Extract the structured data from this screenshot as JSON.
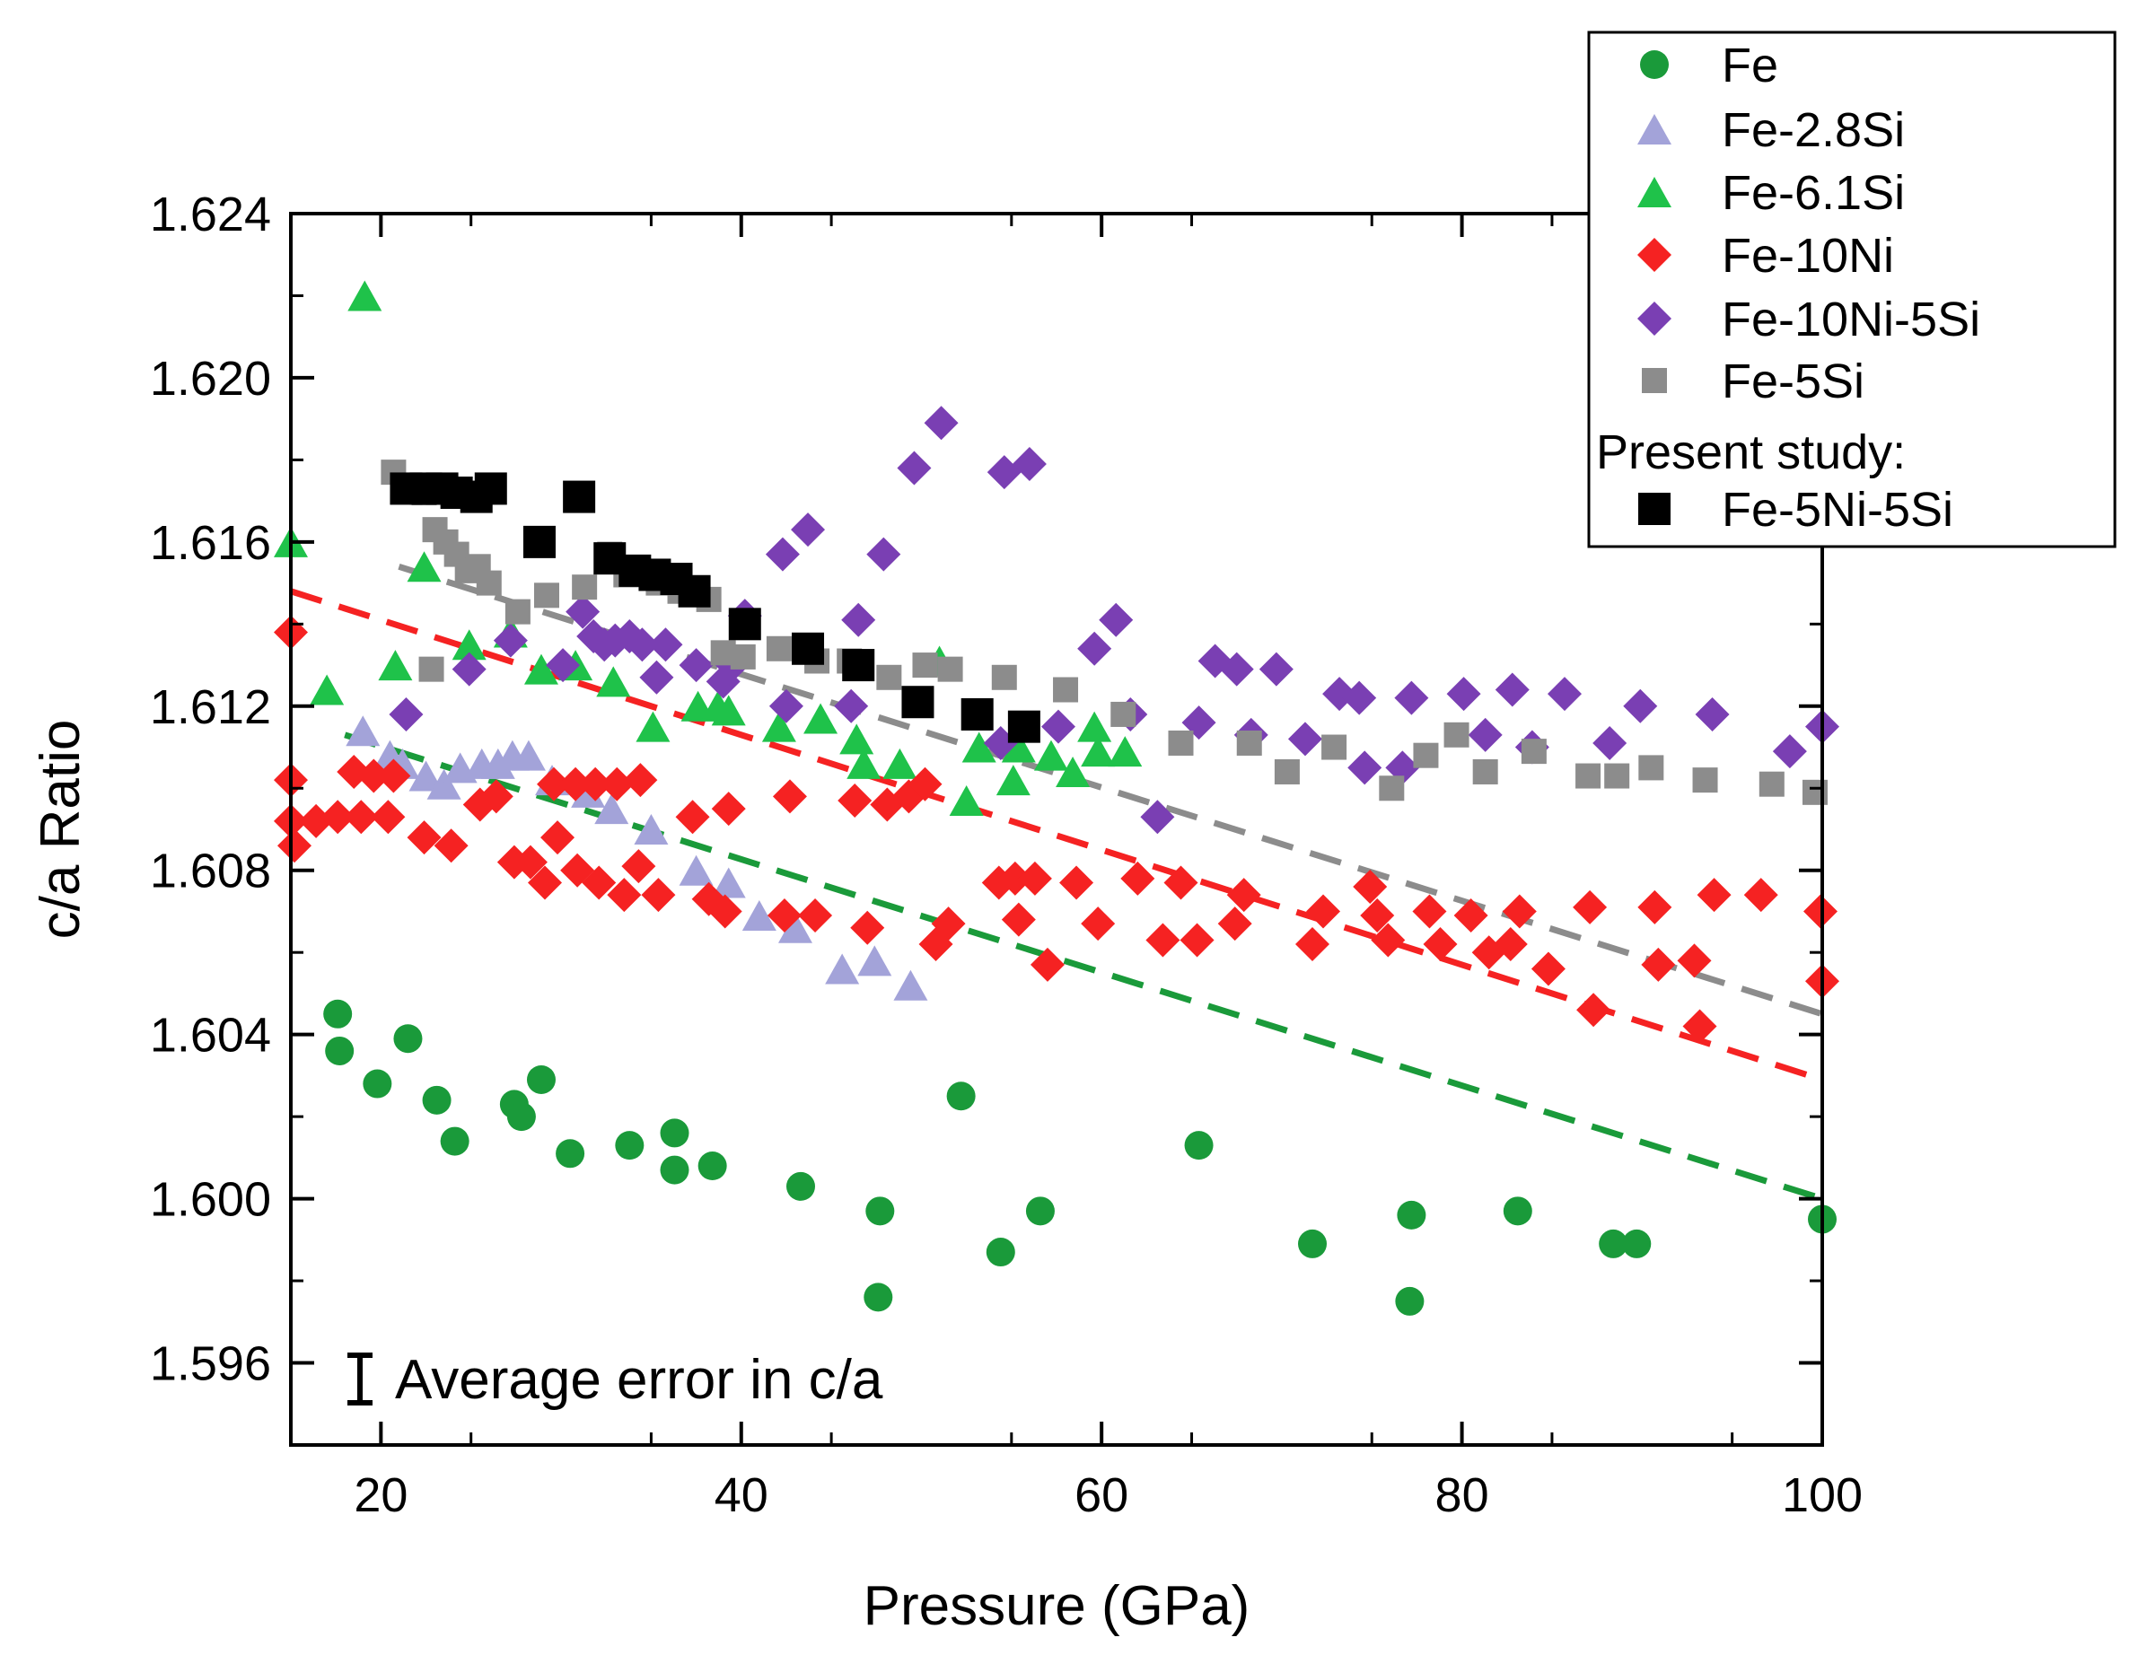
{
  "chart_data": {
    "type": "scatter",
    "title": "",
    "xlabel": "Pressure (GPa)",
    "ylabel": "c/a Ratio",
    "xlim": [
      15,
      100
    ],
    "ylim": [
      1.594,
      1.624
    ],
    "xticks": [
      20,
      40,
      60,
      80,
      100
    ],
    "xtick_labels": [
      "20",
      "40",
      "60",
      "80",
      "100"
    ],
    "yticks": [
      1.596,
      1.6,
      1.604,
      1.608,
      1.612,
      1.616,
      1.62,
      1.624
    ],
    "ytick_labels": [
      "1.596",
      "1.600",
      "1.604",
      "1.608",
      "1.612",
      "1.616",
      "1.620",
      "1.624"
    ],
    "grid": false,
    "legend_position": "top-right",
    "annotation": "Average error in c/a",
    "legend_subheading": "Present study:",
    "series": [
      {
        "name": "Fe",
        "marker": "circle",
        "color": "#1a9a3a",
        "points": [
          [
            17.6,
            1.6045
          ],
          [
            17.7,
            1.6036
          ],
          [
            19.8,
            1.6028
          ],
          [
            21.5,
            1.6039
          ],
          [
            23.1,
            1.6024
          ],
          [
            24.1,
            1.6014
          ],
          [
            27.4,
            1.6023
          ],
          [
            27.8,
            1.602
          ],
          [
            28.9,
            1.6029
          ],
          [
            30.5,
            1.6011
          ],
          [
            33.8,
            1.6013
          ],
          [
            36.3,
            1.6016
          ],
          [
            36.3,
            1.6007
          ],
          [
            38.4,
            1.6008
          ],
          [
            43.3,
            1.6003
          ],
          [
            47.7,
            1.5997
          ],
          [
            47.6,
            1.5976
          ],
          [
            52.2,
            1.6025
          ],
          [
            54.4,
            1.5987
          ],
          [
            56.6,
            1.5997
          ],
          [
            65.4,
            1.6013
          ],
          [
            71.7,
            1.5989
          ],
          [
            77.2,
            1.5996
          ],
          [
            77.1,
            1.5975
          ],
          [
            83.1,
            1.5997
          ],
          [
            88.4,
            1.5989
          ],
          [
            89.7,
            1.5989
          ],
          [
            100.0,
            1.5995
          ]
        ]
      },
      {
        "name": "Fe-2.8Si",
        "marker": "triangle",
        "color": "#a3a3d9",
        "points": [
          [
            19.0,
            1.6114
          ],
          [
            20.5,
            1.6108
          ],
          [
            21.2,
            1.6106
          ],
          [
            22.5,
            1.6103
          ],
          [
            23.5,
            1.6101
          ],
          [
            24.4,
            1.6105
          ],
          [
            25.6,
            1.6106
          ],
          [
            26.5,
            1.6106
          ],
          [
            27.3,
            1.6108
          ],
          [
            28.2,
            1.6108
          ],
          [
            29.5,
            1.6102
          ],
          [
            31.5,
            1.6099
          ],
          [
            32.8,
            1.6095
          ],
          [
            35.0,
            1.609
          ],
          [
            37.5,
            1.608
          ],
          [
            39.3,
            1.6077
          ],
          [
            41.0,
            1.6069
          ],
          [
            43.0,
            1.6066
          ],
          [
            45.6,
            1.6056
          ],
          [
            47.4,
            1.6058
          ],
          [
            49.4,
            1.6052
          ]
        ]
      },
      {
        "name": "Fe-6.1Si",
        "marker": "triangle",
        "color": "#1fc24a",
        "points": [
          [
            15.0,
            1.616
          ],
          [
            17.0,
            1.6124
          ],
          [
            19.1,
            1.622
          ],
          [
            20.8,
            1.613
          ],
          [
            22.4,
            1.6154
          ],
          [
            24.9,
            1.6135
          ],
          [
            27.2,
            1.6138
          ],
          [
            28.9,
            1.6129
          ],
          [
            30.8,
            1.613
          ],
          [
            32.9,
            1.6126
          ],
          [
            35.1,
            1.6115
          ],
          [
            37.6,
            1.612
          ],
          [
            38.7,
            1.612
          ],
          [
            39.3,
            1.6119
          ],
          [
            42.1,
            1.6115
          ],
          [
            44.4,
            1.6117
          ],
          [
            46.4,
            1.6112
          ],
          [
            46.8,
            1.6106
          ],
          [
            48.8,
            1.6106
          ],
          [
            51.0,
            1.6131
          ],
          [
            52.5,
            1.6097
          ],
          [
            53.2,
            1.611
          ],
          [
            55.1,
            1.6102
          ],
          [
            55.4,
            1.611
          ],
          [
            57.2,
            1.6108
          ],
          [
            58.4,
            1.6104
          ],
          [
            59.6,
            1.6115
          ],
          [
            59.8,
            1.6109
          ],
          [
            61.3,
            1.6109
          ]
        ]
      },
      {
        "name": "Fe-10Ni",
        "marker": "diamond",
        "color": "#f52222",
        "points": [
          [
            15.0,
            1.6138
          ],
          [
            15.0,
            1.6102
          ],
          [
            15.0,
            1.6092
          ],
          [
            15.2,
            1.6086
          ],
          [
            16.4,
            1.6092
          ],
          [
            17.6,
            1.6093
          ],
          [
            18.9,
            1.6093
          ],
          [
            20.4,
            1.6093
          ],
          [
            18.5,
            1.6104
          ],
          [
            19.6,
            1.6103
          ],
          [
            20.7,
            1.6103
          ],
          [
            22.4,
            1.6088
          ],
          [
            23.9,
            1.6086
          ],
          [
            25.5,
            1.6096
          ],
          [
            26.4,
            1.6098
          ],
          [
            27.4,
            1.6082
          ],
          [
            28.3,
            1.6082
          ],
          [
            29.1,
            1.6077
          ],
          [
            29.8,
            1.6088
          ],
          [
            30.9,
            1.608
          ],
          [
            32.1,
            1.6077
          ],
          [
            33.5,
            1.6074
          ],
          [
            34.3,
            1.6081
          ],
          [
            35.4,
            1.6074
          ],
          [
            29.6,
            1.6101
          ],
          [
            30.8,
            1.6101
          ],
          [
            31.9,
            1.6101
          ],
          [
            33.1,
            1.6101
          ],
          [
            34.4,
            1.6102
          ],
          [
            37.3,
            1.6093
          ],
          [
            38.2,
            1.6073
          ],
          [
            39.1,
            1.607
          ],
          [
            39.3,
            1.6095
          ],
          [
            42.4,
            1.6069
          ],
          [
            42.7,
            1.6098
          ],
          [
            44.1,
            1.6069
          ],
          [
            46.3,
            1.6097
          ],
          [
            47.0,
            1.6066
          ],
          [
            48.1,
            1.6096
          ],
          [
            49.3,
            1.6098
          ],
          [
            50.2,
            1.6101
          ],
          [
            50.8,
            1.6062
          ],
          [
            51.5,
            1.6067
          ],
          [
            54.3,
            1.6077
          ],
          [
            55.2,
            1.6078
          ],
          [
            55.4,
            1.6068
          ],
          [
            56.3,
            1.6078
          ],
          [
            57.0,
            1.6057
          ],
          [
            58.6,
            1.6077
          ],
          [
            59.8,
            1.6067
          ],
          [
            62.0,
            1.6078
          ],
          [
            63.4,
            1.6063
          ],
          [
            64.4,
            1.6077
          ],
          [
            65.3,
            1.6063
          ],
          [
            67.4,
            1.6067
          ],
          [
            67.9,
            1.6074
          ],
          [
            71.7,
            1.6062
          ],
          [
            72.3,
            1.607
          ],
          [
            74.9,
            1.6076
          ],
          [
            75.3,
            1.6069
          ],
          [
            75.9,
            1.6063
          ],
          [
            78.2,
            1.607
          ],
          [
            78.8,
            1.6062
          ],
          [
            80.5,
            1.6069
          ],
          [
            81.5,
            1.606
          ],
          [
            82.7,
            1.6062
          ],
          [
            83.2,
            1.607
          ],
          [
            84.8,
            1.6056
          ],
          [
            87.1,
            1.6071
          ],
          [
            87.3,
            1.6046
          ],
          [
            90.7,
            1.6071
          ],
          [
            90.9,
            1.6057
          ],
          [
            92.9,
            1.6058
          ],
          [
            93.2,
            1.6042
          ],
          [
            94.0,
            1.6074
          ],
          [
            96.6,
            1.6074
          ],
          [
            99.9,
            1.607
          ],
          [
            100.0,
            1.6053
          ]
        ]
      },
      {
        "name": "Fe-10Ni-5Si",
        "marker": "diamond",
        "color": "#7a3fb3",
        "points": [
          [
            21.4,
            1.6118
          ],
          [
            24.9,
            1.6129
          ],
          [
            27.2,
            1.6136
          ],
          [
            30.1,
            1.613
          ],
          [
            31.2,
            1.6143
          ],
          [
            31.8,
            1.6137
          ],
          [
            32.4,
            1.6135
          ],
          [
            33.0,
            1.6136
          ],
          [
            33.8,
            1.6137
          ],
          [
            34.5,
            1.6135
          ],
          [
            35.3,
            1.6127
          ],
          [
            35.8,
            1.6135
          ],
          [
            37.5,
            1.613
          ],
          [
            39.0,
            1.6126
          ],
          [
            39.5,
            1.613
          ],
          [
            40.2,
            1.6142
          ],
          [
            42.3,
            1.6157
          ],
          [
            42.5,
            1.612
          ],
          [
            43.7,
            1.6163
          ],
          [
            46.1,
            1.612
          ],
          [
            46.5,
            1.6141
          ],
          [
            47.9,
            1.6157
          ],
          [
            49.6,
            1.6178
          ],
          [
            51.1,
            1.6189
          ],
          [
            54.4,
            1.6111
          ],
          [
            54.6,
            1.6177
          ],
          [
            56.0,
            1.6179
          ],
          [
            57.6,
            1.6115
          ],
          [
            59.6,
            1.6134
          ],
          [
            60.8,
            1.6141
          ],
          [
            61.6,
            1.6118
          ],
          [
            63.1,
            1.6093
          ],
          [
            65.4,
            1.6116
          ],
          [
            66.3,
            1.6131
          ],
          [
            67.5,
            1.6129
          ],
          [
            68.3,
            1.6113
          ],
          [
            69.7,
            1.6129
          ],
          [
            71.3,
            1.6112
          ],
          [
            73.2,
            1.6123
          ],
          [
            74.3,
            1.6122
          ],
          [
            74.6,
            1.6105
          ],
          [
            76.7,
            1.6105
          ],
          [
            77.2,
            1.6122
          ],
          [
            80.1,
            1.6123
          ],
          [
            81.3,
            1.6113
          ],
          [
            82.8,
            1.6124
          ],
          [
            83.9,
            1.611
          ],
          [
            85.7,
            1.6123
          ],
          [
            88.2,
            1.6111
          ],
          [
            89.9,
            1.612
          ],
          [
            93.9,
            1.6118
          ],
          [
            98.2,
            1.6109
          ],
          [
            100.0,
            1.6115
          ]
        ]
      },
      {
        "name": "Fe-5Si",
        "marker": "square",
        "color": "#8c8c8c",
        "points": [
          [
            20.7,
            1.6177
          ],
          [
            22.4,
            1.6172
          ],
          [
            23.0,
            1.6163
          ],
          [
            23.6,
            1.616
          ],
          [
            24.2,
            1.6157
          ],
          [
            24.8,
            1.6153
          ],
          [
            25.4,
            1.6154
          ],
          [
            26.0,
            1.615
          ],
          [
            22.8,
            1.6129
          ],
          [
            27.6,
            1.6143
          ],
          [
            29.2,
            1.6147
          ],
          [
            31.3,
            1.6149
          ],
          [
            32.7,
            1.6157
          ],
          [
            33.6,
            1.6152
          ],
          [
            35.4,
            1.615
          ],
          [
            36.6,
            1.6148
          ],
          [
            38.2,
            1.6146
          ],
          [
            39.0,
            1.6133
          ],
          [
            40.1,
            1.6132
          ],
          [
            42.1,
            1.6134
          ],
          [
            44.2,
            1.6131
          ],
          [
            46.0,
            1.6131
          ],
          [
            48.2,
            1.6127
          ],
          [
            50.2,
            1.613
          ],
          [
            51.6,
            1.6129
          ],
          [
            54.6,
            1.6127
          ],
          [
            58.0,
            1.6124
          ],
          [
            61.2,
            1.6118
          ],
          [
            64.4,
            1.6111
          ],
          [
            68.2,
            1.6111
          ],
          [
            70.3,
            1.6104
          ],
          [
            72.9,
            1.611
          ],
          [
            76.1,
            1.61
          ],
          [
            78.0,
            1.6108
          ],
          [
            79.7,
            1.6113
          ],
          [
            81.3,
            1.6104
          ],
          [
            84.0,
            1.6109
          ],
          [
            87.0,
            1.6103
          ],
          [
            88.6,
            1.6103
          ],
          [
            90.5,
            1.6105
          ],
          [
            93.5,
            1.6102
          ],
          [
            97.2,
            1.6101
          ],
          [
            99.6,
            1.6099
          ]
        ]
      },
      {
        "name": "Fe-5Ni-5Si",
        "marker": "square",
        "color": "#000000",
        "points": [
          [
            21.4,
            1.6173
          ],
          [
            22.5,
            1.6173
          ],
          [
            23.4,
            1.6173
          ],
          [
            24.2,
            1.6172
          ],
          [
            25.3,
            1.6171
          ],
          [
            26.1,
            1.6173
          ],
          [
            28.8,
            1.616
          ],
          [
            31.0,
            1.6171
          ],
          [
            32.7,
            1.6156
          ],
          [
            34.1,
            1.6153
          ],
          [
            35.2,
            1.6152
          ],
          [
            36.4,
            1.6151
          ],
          [
            37.4,
            1.6148
          ],
          [
            40.2,
            1.614
          ],
          [
            43.7,
            1.6134
          ],
          [
            46.5,
            1.613
          ],
          [
            49.8,
            1.6121
          ],
          [
            53.1,
            1.6118
          ],
          [
            55.7,
            1.6115
          ]
        ]
      }
    ],
    "fits": [
      {
        "name": "Fe fit",
        "color": "#1a9a3a",
        "x": [
          18.0,
          100.0
        ],
        "y": [
          1.6113,
          1.6
        ]
      },
      {
        "name": "Fe-10Ni fit",
        "color": "#f52222",
        "x": [
          15.0,
          100.0
        ],
        "y": [
          1.6148,
          1.6029
        ]
      },
      {
        "name": "Fe-5Si fit",
        "color": "#8c8c8c",
        "x": [
          21.0,
          100.0
        ],
        "y": [
          1.6154,
          1.6045
        ]
      }
    ]
  }
}
